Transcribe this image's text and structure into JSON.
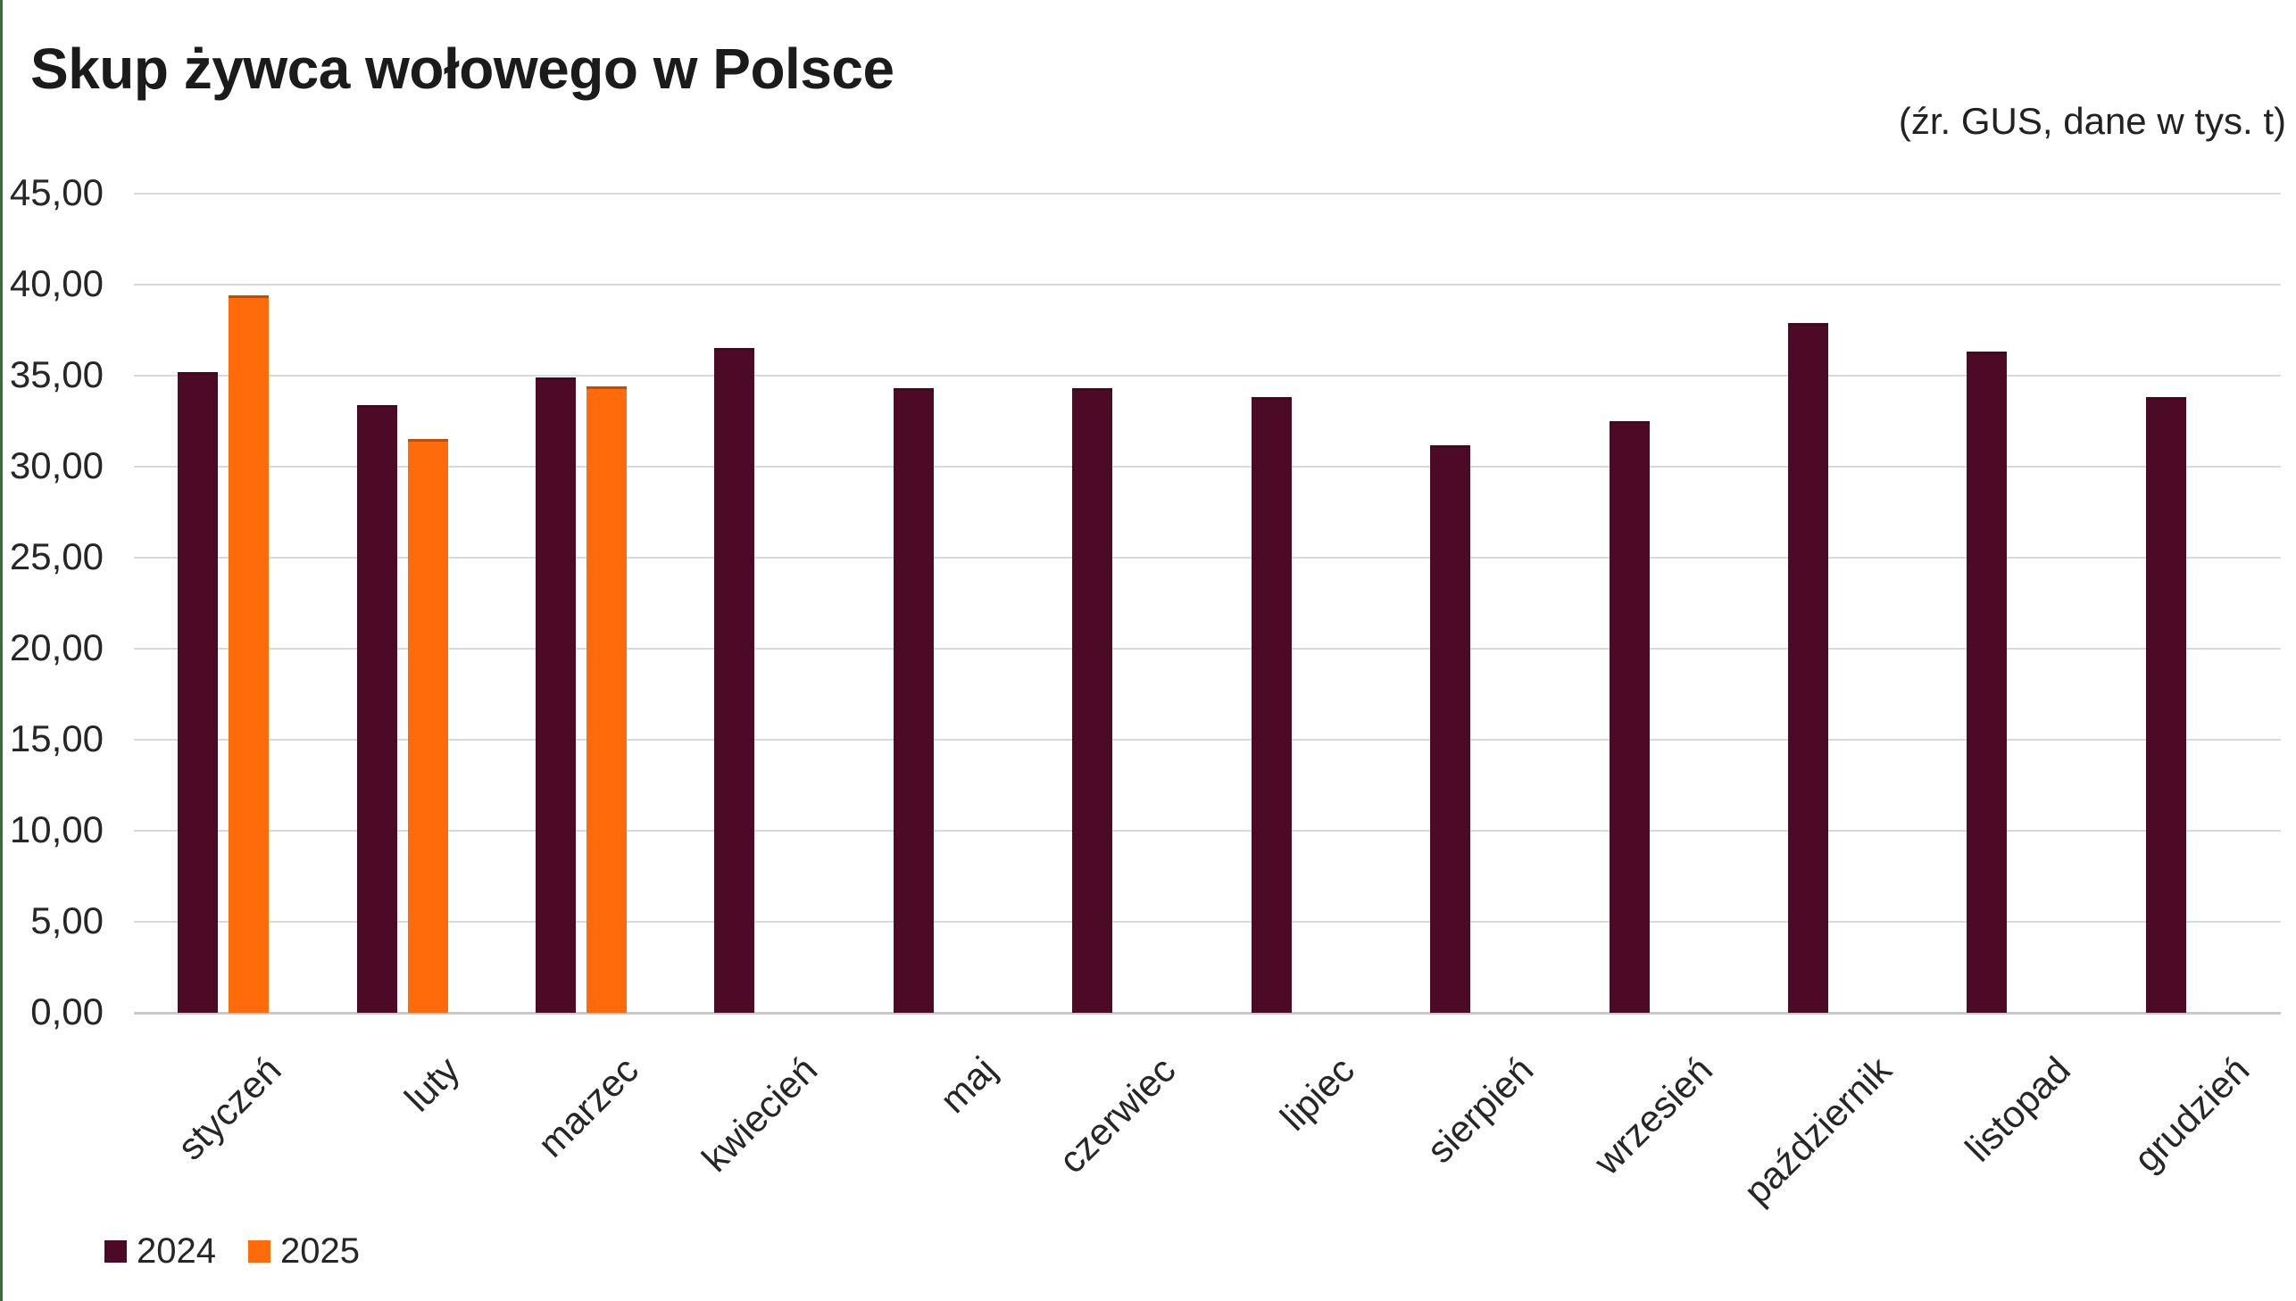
{
  "header": {
    "title": "Skup żywca wołowego w Polsce",
    "subtitle": "(źr. GUS, dane w tys. t)"
  },
  "decor": {
    "left_strip_color": "#41693F",
    "gridline_color": "#D9D9D9",
    "baseline_color": "#C9C9C9"
  },
  "chart_data": {
    "type": "bar",
    "title": "Skup żywca wołowego w Polsce",
    "subtitle": "(źr. GUS, dane w tys. t)",
    "categories": [
      "styczeń",
      "luty",
      "marzec",
      "kwiecień",
      "maj",
      "czerwiec",
      "lipiec",
      "sierpień",
      "wrzesień",
      "październik",
      "listopad",
      "grudzień"
    ],
    "series": [
      {
        "name": "2024",
        "color": "#4D0A26",
        "values": [
          35.2,
          33.4,
          34.9,
          36.5,
          34.3,
          34.3,
          33.8,
          31.2,
          32.5,
          37.9,
          36.3,
          33.8
        ]
      },
      {
        "name": "2025",
        "color": "#FF6B0A",
        "values": [
          39.4,
          31.5,
          34.4,
          null,
          null,
          null,
          null,
          null,
          null,
          null,
          null,
          null
        ]
      }
    ],
    "xlabel": "",
    "ylabel": "",
    "ylim": [
      0,
      45
    ],
    "ytick_step": 5,
    "ytick_labels": [
      "0,00",
      "5,00",
      "10,00",
      "15,00",
      "20,00",
      "25,00",
      "30,00",
      "35,00",
      "40,00",
      "45,00"
    ],
    "grid": true,
    "x_tick_rotation": -45,
    "legend_position": "bottom-left"
  }
}
